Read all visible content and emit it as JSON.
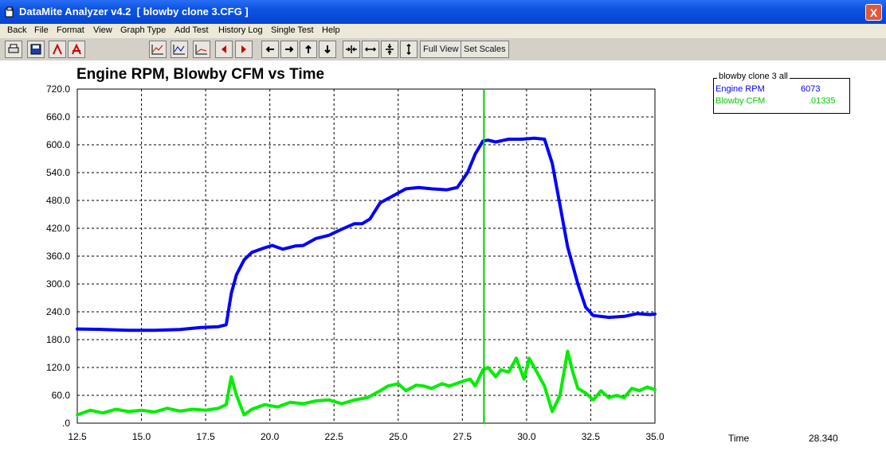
{
  "window": {
    "title": "DataMite Analyzer v4.2  [ blowby clone 3.CFG ]",
    "close_glyph": "X",
    "app_icon": "app-icon"
  },
  "menu": [
    "Back",
    "File",
    "Format",
    "View",
    "Graph Type",
    "Add Test",
    "History Log",
    "Single Test",
    "Help"
  ],
  "toolbar": {
    "icons": [
      "print-icon",
      "save-icon",
      "cursor-red-icon",
      "cursor-red-alt-icon",
      "chart-zoom-icon",
      "chart-zoom-alt-icon",
      "chart-line-icon",
      "scroll-left-icon",
      "scroll-right-icon",
      "arrow-left-icon",
      "arrow-right-icon",
      "arrow-up-icon",
      "arrow-down-icon",
      "compress-horizontal-icon",
      "expand-horizontal-icon",
      "compress-vertical-icon",
      "expand-vertical-icon"
    ],
    "full_view": "Full View",
    "set_scales": "Set Scales"
  },
  "legend": {
    "header": "blowby clone 3   all",
    "items": [
      {
        "name": "Engine RPM",
        "value": "6073",
        "color": "#0000ff"
      },
      {
        "name": "Blowby CFM",
        "value": ".01335",
        "color": "#00cc00"
      }
    ]
  },
  "readout": {
    "label": "Time",
    "value": "28.340"
  },
  "chart_data": {
    "type": "line",
    "title": "Engine RPM, Blowby CFM  vs Time",
    "xlabel": "",
    "ylabel": "",
    "xlim": [
      12.5,
      35.0
    ],
    "ylim": [
      0,
      720
    ],
    "xticks": [
      "12.5",
      "15.0",
      "17.5",
      "20.0",
      "22.5",
      "25.0",
      "27.5",
      "30.0",
      "32.5",
      "35.0"
    ],
    "yticks": [
      ".0",
      "60.0",
      "120.0",
      "180.0",
      "240.0",
      "300.0",
      "360.0",
      "420.0",
      "480.0",
      "540.0",
      "600.0",
      "660.0",
      "720.0"
    ],
    "grid": true,
    "cursor_x": 28.34,
    "series": [
      {
        "name": "Engine RPM",
        "color": "#0000ff",
        "x": [
          12.5,
          13.5,
          14.5,
          15.5,
          16.5,
          17.3,
          18.0,
          18.3,
          18.5,
          18.7,
          19.0,
          19.3,
          19.8,
          20.1,
          20.5,
          21.0,
          21.3,
          21.8,
          22.3,
          22.8,
          23.3,
          23.6,
          23.9,
          24.3,
          24.8,
          25.3,
          25.8,
          26.3,
          26.9,
          27.3,
          27.7,
          28.0,
          28.3,
          28.5,
          28.8,
          29.3,
          29.8,
          30.3,
          30.7,
          31.0,
          31.3,
          31.6,
          32.0,
          32.3,
          32.6,
          33.2,
          33.8,
          34.3,
          34.8,
          35.0
        ],
        "y": [
          203,
          202,
          200,
          200,
          202,
          206,
          208,
          212,
          280,
          320,
          352,
          368,
          378,
          383,
          375,
          382,
          383,
          398,
          405,
          418,
          430,
          430,
          440,
          475,
          490,
          505,
          508,
          505,
          503,
          508,
          540,
          580,
          608,
          610,
          606,
          612,
          612,
          614,
          612,
          560,
          470,
          380,
          300,
          250,
          232,
          228,
          230,
          236,
          234,
          235
        ]
      },
      {
        "name": "Blowby CFM",
        "color": "#00ee00",
        "x": [
          12.5,
          13.0,
          13.5,
          14.0,
          14.5,
          15.0,
          15.5,
          16.0,
          16.5,
          17.0,
          17.5,
          18.0,
          18.3,
          18.5,
          18.7,
          19.0,
          19.3,
          19.8,
          20.3,
          20.8,
          21.3,
          21.8,
          22.3,
          22.8,
          23.3,
          23.8,
          24.3,
          24.6,
          25.0,
          25.3,
          25.7,
          26.0,
          26.3,
          26.7,
          27.0,
          27.5,
          27.8,
          28.0,
          28.3,
          28.5,
          28.8,
          29.0,
          29.3,
          29.6,
          29.9,
          30.1,
          30.4,
          30.7,
          31.0,
          31.3,
          31.6,
          31.8,
          32.0,
          32.3,
          32.6,
          32.9,
          33.2,
          33.5,
          33.8,
          34.1,
          34.4,
          34.7,
          35.0
        ],
        "y": [
          18,
          28,
          22,
          30,
          25,
          28,
          24,
          32,
          26,
          30,
          28,
          32,
          40,
          100,
          60,
          18,
          30,
          40,
          35,
          45,
          42,
          48,
          50,
          42,
          50,
          55,
          70,
          80,
          85,
          70,
          82,
          80,
          75,
          85,
          80,
          90,
          95,
          80,
          115,
          120,
          100,
          115,
          110,
          140,
          95,
          140,
          110,
          80,
          25,
          60,
          155,
          110,
          75,
          65,
          50,
          70,
          55,
          60,
          55,
          75,
          70,
          78,
          72
        ]
      }
    ]
  }
}
